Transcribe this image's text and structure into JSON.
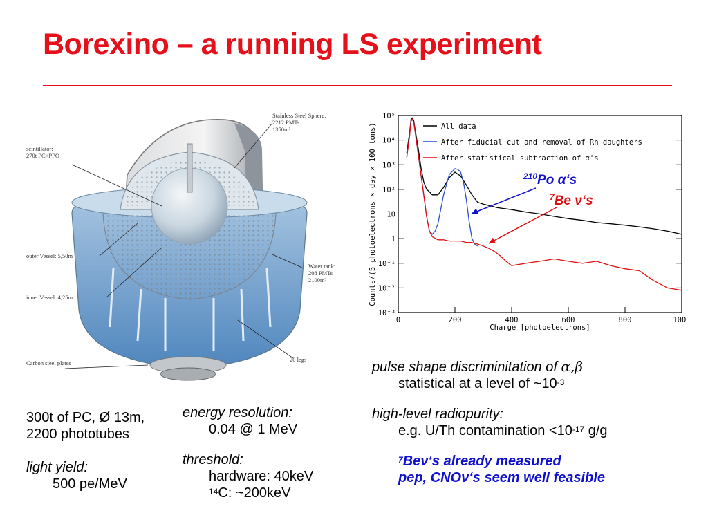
{
  "title": "Borexino – a running LS experiment",
  "detector": {
    "labels": {
      "sphere_l1": "Stainless Steel Sphere:",
      "sphere_l2": "2212 PMTs",
      "sphere_l3": "1350m³",
      "scint_l1": "scintillator:",
      "scint_l2": "270t PC+PPO",
      "outer_vessel": "outer Vessel: 5,50m",
      "water_l1": "Water tank:",
      "water_l2": "208 PMTs",
      "water_l3": "2100m³",
      "inner_vessel": "inner Vessel: 4,25m",
      "carbon": "Carbon steel plates",
      "legs": "20 legs"
    }
  },
  "left_text": {
    "specs_l1": "300t of PC, Ø 13m,",
    "specs_l2": "2200 phototubes",
    "light_yield_label": "light yield:",
    "light_yield_value": "500 pe/MeV"
  },
  "mid_text": {
    "energy_label": "energy resolution:",
    "energy_value": "0.04 @ 1 MeV",
    "threshold_label": "threshold:",
    "hardware": "hardware: 40keV",
    "c14_sup": "14",
    "c14_rest": "C: ~200keV"
  },
  "right_text": {
    "psd_label": "pulse shape discriminitation of ",
    "psd_greek": "α,β",
    "psd_value_pre": "statistical at a level of ~10",
    "psd_value_exp": "-3",
    "radio_label": "high-level radiopurity:",
    "radio_value_pre": "e.g. U/Th contamination <10",
    "radio_value_exp": "-17",
    "radio_value_post": " g/g",
    "be7_sup": "7",
    "be7_rest": "Beν‘s already measured",
    "pep_line": "pep, CNOν‘s seem well feasible"
  },
  "annotations": {
    "po_sup": "210",
    "po_text": "Po α‘s",
    "be_sup": "7",
    "be_text": "Be ν‘s"
  },
  "chart_data": {
    "type": "line",
    "title": "",
    "xlabel": "Charge [photoelectrons]",
    "ylabel": "Counts/(5 photoelectrons × day × 100 tons)",
    "xlim": [
      0,
      1000
    ],
    "ylim": [
      0.001,
      100000
    ],
    "yscale": "log",
    "x_ticks": [
      "0",
      "200",
      "400",
      "600",
      "800",
      "1000"
    ],
    "y_ticks": [
      "10⁻³",
      "10⁻²",
      "10⁻¹",
      "1",
      "10",
      "10²",
      "10³",
      "10⁴",
      "10⁵"
    ],
    "legend_position": "top-right",
    "series": [
      {
        "name": "All data",
        "color": "#000000",
        "x": [
          30,
          40,
          45,
          50,
          55,
          60,
          70,
          80,
          90,
          100,
          110,
          120,
          140,
          160,
          180,
          200,
          220,
          240,
          260,
          280,
          300,
          350,
          400,
          450,
          500,
          550,
          600,
          650,
          700,
          750,
          800,
          850,
          900,
          950,
          1000
        ],
        "y": [
          3000,
          20000,
          70000,
          80000,
          60000,
          25000,
          5000,
          800,
          200,
          100,
          80,
          60,
          60,
          120,
          300,
          500,
          350,
          150,
          60,
          30,
          25,
          18,
          15,
          12,
          10,
          8,
          6.5,
          5.5,
          4.5,
          4,
          3.5,
          3,
          2.5,
          2,
          1.5
        ]
      },
      {
        "name": "After fiducial cut and removal of Rn daughters",
        "color": "#2a50c8",
        "x": [
          30,
          40,
          45,
          50,
          55,
          60,
          70,
          80,
          90,
          100,
          110,
          120,
          130,
          140,
          160,
          180,
          200,
          210,
          220,
          230,
          240,
          250,
          260,
          270,
          280
        ],
        "y": [
          2000,
          15000,
          60000,
          70000,
          50000,
          20000,
          3000,
          400,
          60,
          8,
          2,
          1.5,
          2,
          4,
          60,
          400,
          700,
          650,
          500,
          200,
          40,
          5,
          1,
          0.6,
          0.5
        ]
      },
      {
        "name": "After statistical subtraction of α's",
        "color": "#e01010",
        "x": [
          30,
          40,
          45,
          50,
          55,
          60,
          70,
          80,
          90,
          100,
          110,
          120,
          140,
          160,
          180,
          200,
          220,
          240,
          260,
          280,
          300,
          320,
          340,
          360,
          380,
          400,
          450,
          500,
          550,
          600,
          650,
          700,
          750,
          800,
          850,
          900,
          950,
          1000
        ],
        "y": [
          2000,
          15000,
          60000,
          70000,
          50000,
          20000,
          3000,
          400,
          60,
          8,
          2,
          1.2,
          0.9,
          0.9,
          0.8,
          0.8,
          0.8,
          0.7,
          0.7,
          0.6,
          0.5,
          0.4,
          0.3,
          0.2,
          0.12,
          0.08,
          0.1,
          0.12,
          0.15,
          0.12,
          0.1,
          0.12,
          0.08,
          0.06,
          0.05,
          0.02,
          0.01,
          0.008
        ]
      }
    ]
  }
}
